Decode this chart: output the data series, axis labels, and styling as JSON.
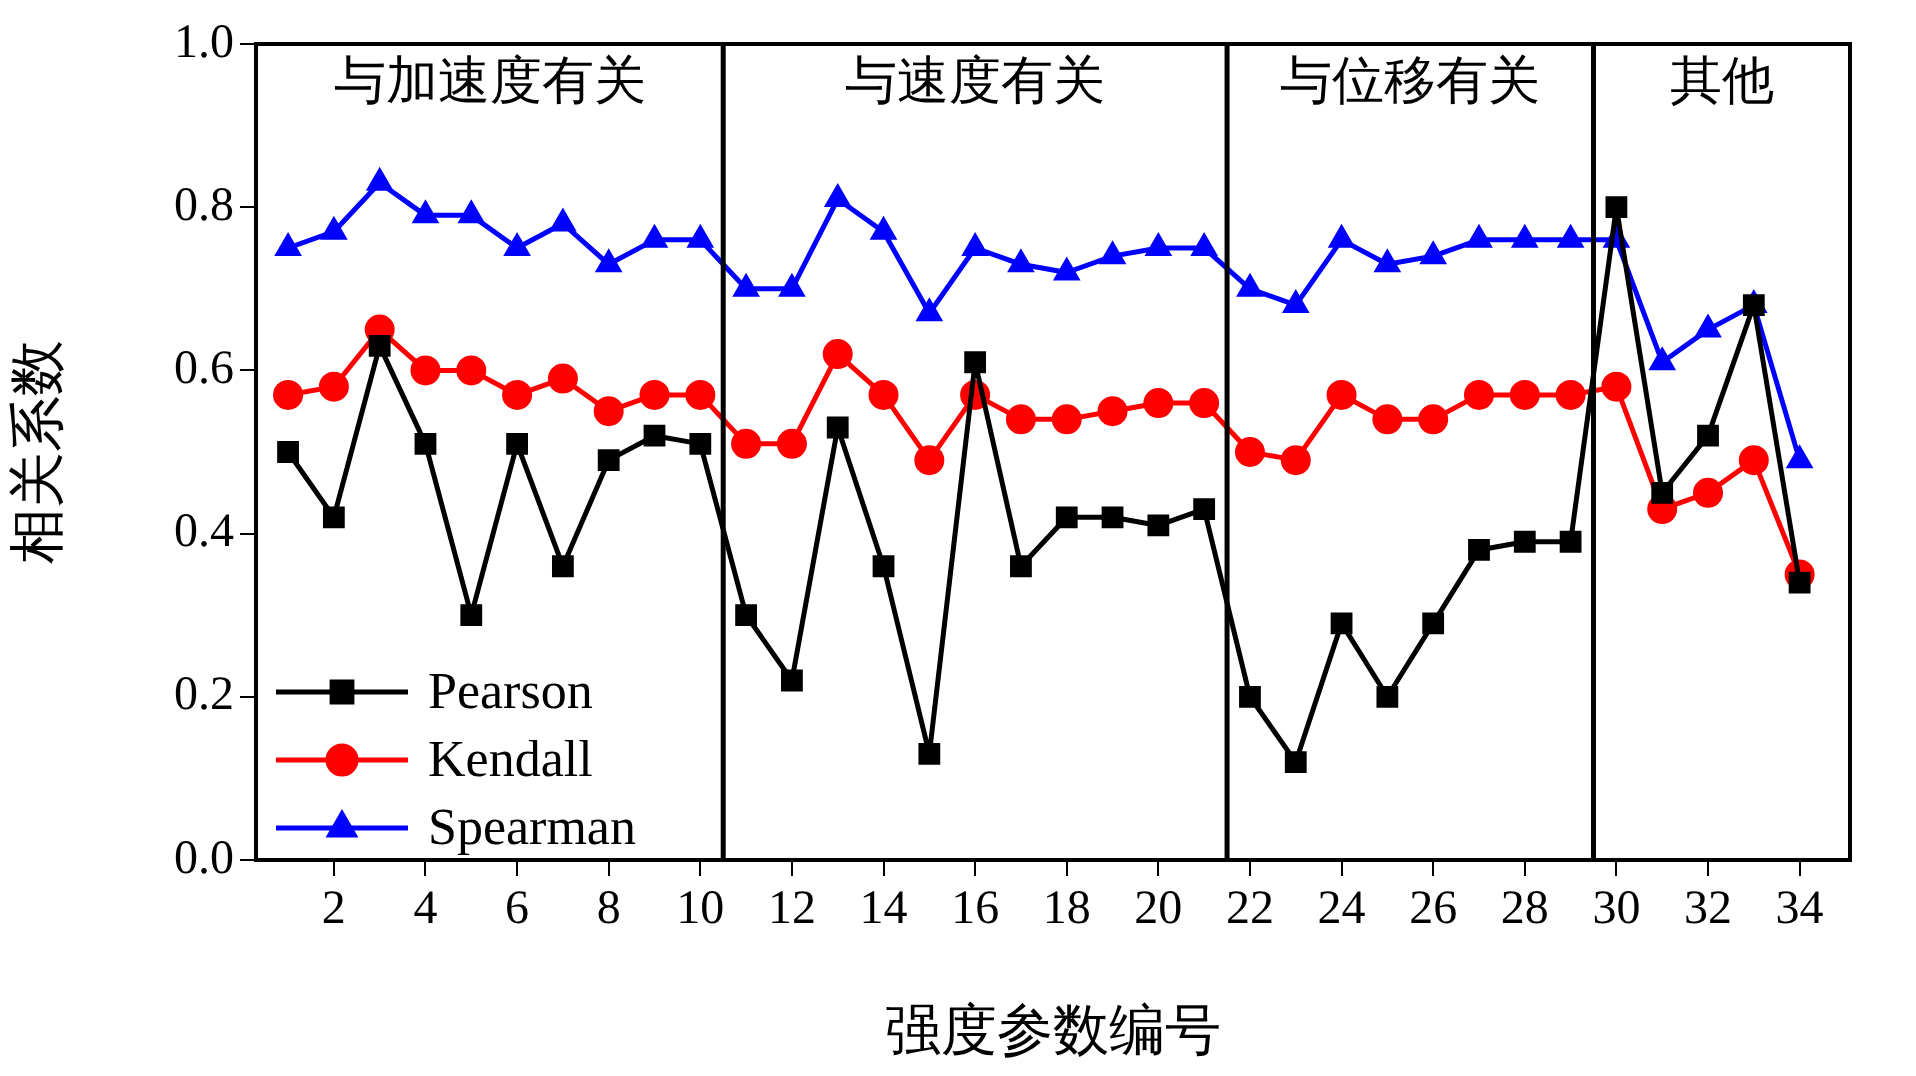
{
  "chart_data": {
    "type": "line",
    "xlabel": "强度参数编号",
    "ylabel": "相关系数",
    "x": [
      1,
      2,
      3,
      4,
      5,
      6,
      7,
      8,
      9,
      10,
      11,
      12,
      13,
      14,
      15,
      16,
      17,
      18,
      19,
      20,
      21,
      22,
      23,
      24,
      25,
      26,
      27,
      28,
      29,
      30,
      31,
      32,
      33,
      34
    ],
    "xlim": [
      0.3,
      35.1
    ],
    "xticks": [
      2,
      4,
      6,
      8,
      10,
      12,
      14,
      16,
      18,
      20,
      22,
      24,
      26,
      28,
      30,
      32,
      34
    ],
    "ylim": [
      0,
      1
    ],
    "yticks": [
      {
        "value": 0,
        "label": "0.0"
      },
      {
        "value": 0.2,
        "label": "0.2"
      },
      {
        "value": 0.4,
        "label": "0.4"
      },
      {
        "value": 0.6,
        "label": "0.6"
      },
      {
        "value": 0.8,
        "label": "0.8"
      },
      {
        "value": 1,
        "label": "1.0"
      }
    ],
    "grid": false,
    "legend": "bottom left",
    "line_style": "solid",
    "series": [
      {
        "name": "Pearson",
        "color": "#000000",
        "marker": "square",
        "values": [
          0.5,
          0.42,
          0.63,
          0.51,
          0.3,
          0.51,
          0.36,
          0.49,
          0.52,
          0.51,
          0.3,
          0.22,
          0.53,
          0.36,
          0.13,
          0.61,
          0.36,
          0.42,
          0.42,
          0.41,
          0.43,
          0.2,
          0.12,
          0.29,
          0.2,
          0.29,
          0.38,
          0.39,
          0.39,
          0.8,
          0.45,
          0.52,
          0.68,
          0.34
        ]
      },
      {
        "name": "Kendall",
        "color": "#ff0000",
        "marker": "circle",
        "values": [
          0.57,
          0.58,
          0.65,
          0.6,
          0.6,
          0.57,
          0.59,
          0.55,
          0.57,
          0.57,
          0.51,
          0.51,
          0.62,
          0.57,
          0.49,
          0.57,
          0.54,
          0.54,
          0.55,
          0.56,
          0.56,
          0.5,
          0.49,
          0.57,
          0.54,
          0.54,
          0.57,
          0.57,
          0.57,
          0.58,
          0.43,
          0.45,
          0.49,
          0.35
        ]
      },
      {
        "name": "Spearman",
        "color": "#0000ff",
        "marker": "triangle",
        "values": [
          0.75,
          0.77,
          0.83,
          0.79,
          0.79,
          0.75,
          0.78,
          0.73,
          0.76,
          0.76,
          0.7,
          0.7,
          0.81,
          0.77,
          0.67,
          0.75,
          0.73,
          0.72,
          0.74,
          0.75,
          0.75,
          0.7,
          0.68,
          0.76,
          0.73,
          0.74,
          0.76,
          0.76,
          0.76,
          0.76,
          0.61,
          0.65,
          0.68,
          0.49
        ]
      }
    ],
    "ref_lines": [
      {
        "axis": "x",
        "value": 10.5,
        "color": "#000000"
      },
      {
        "axis": "x",
        "value": 21.5,
        "color": "#000000"
      },
      {
        "axis": "x",
        "value": 29.5,
        "color": "#000000"
      }
    ],
    "annotations": [
      "与加速度有关",
      "与速度有关",
      "与位移有关",
      "其他"
    ]
  }
}
